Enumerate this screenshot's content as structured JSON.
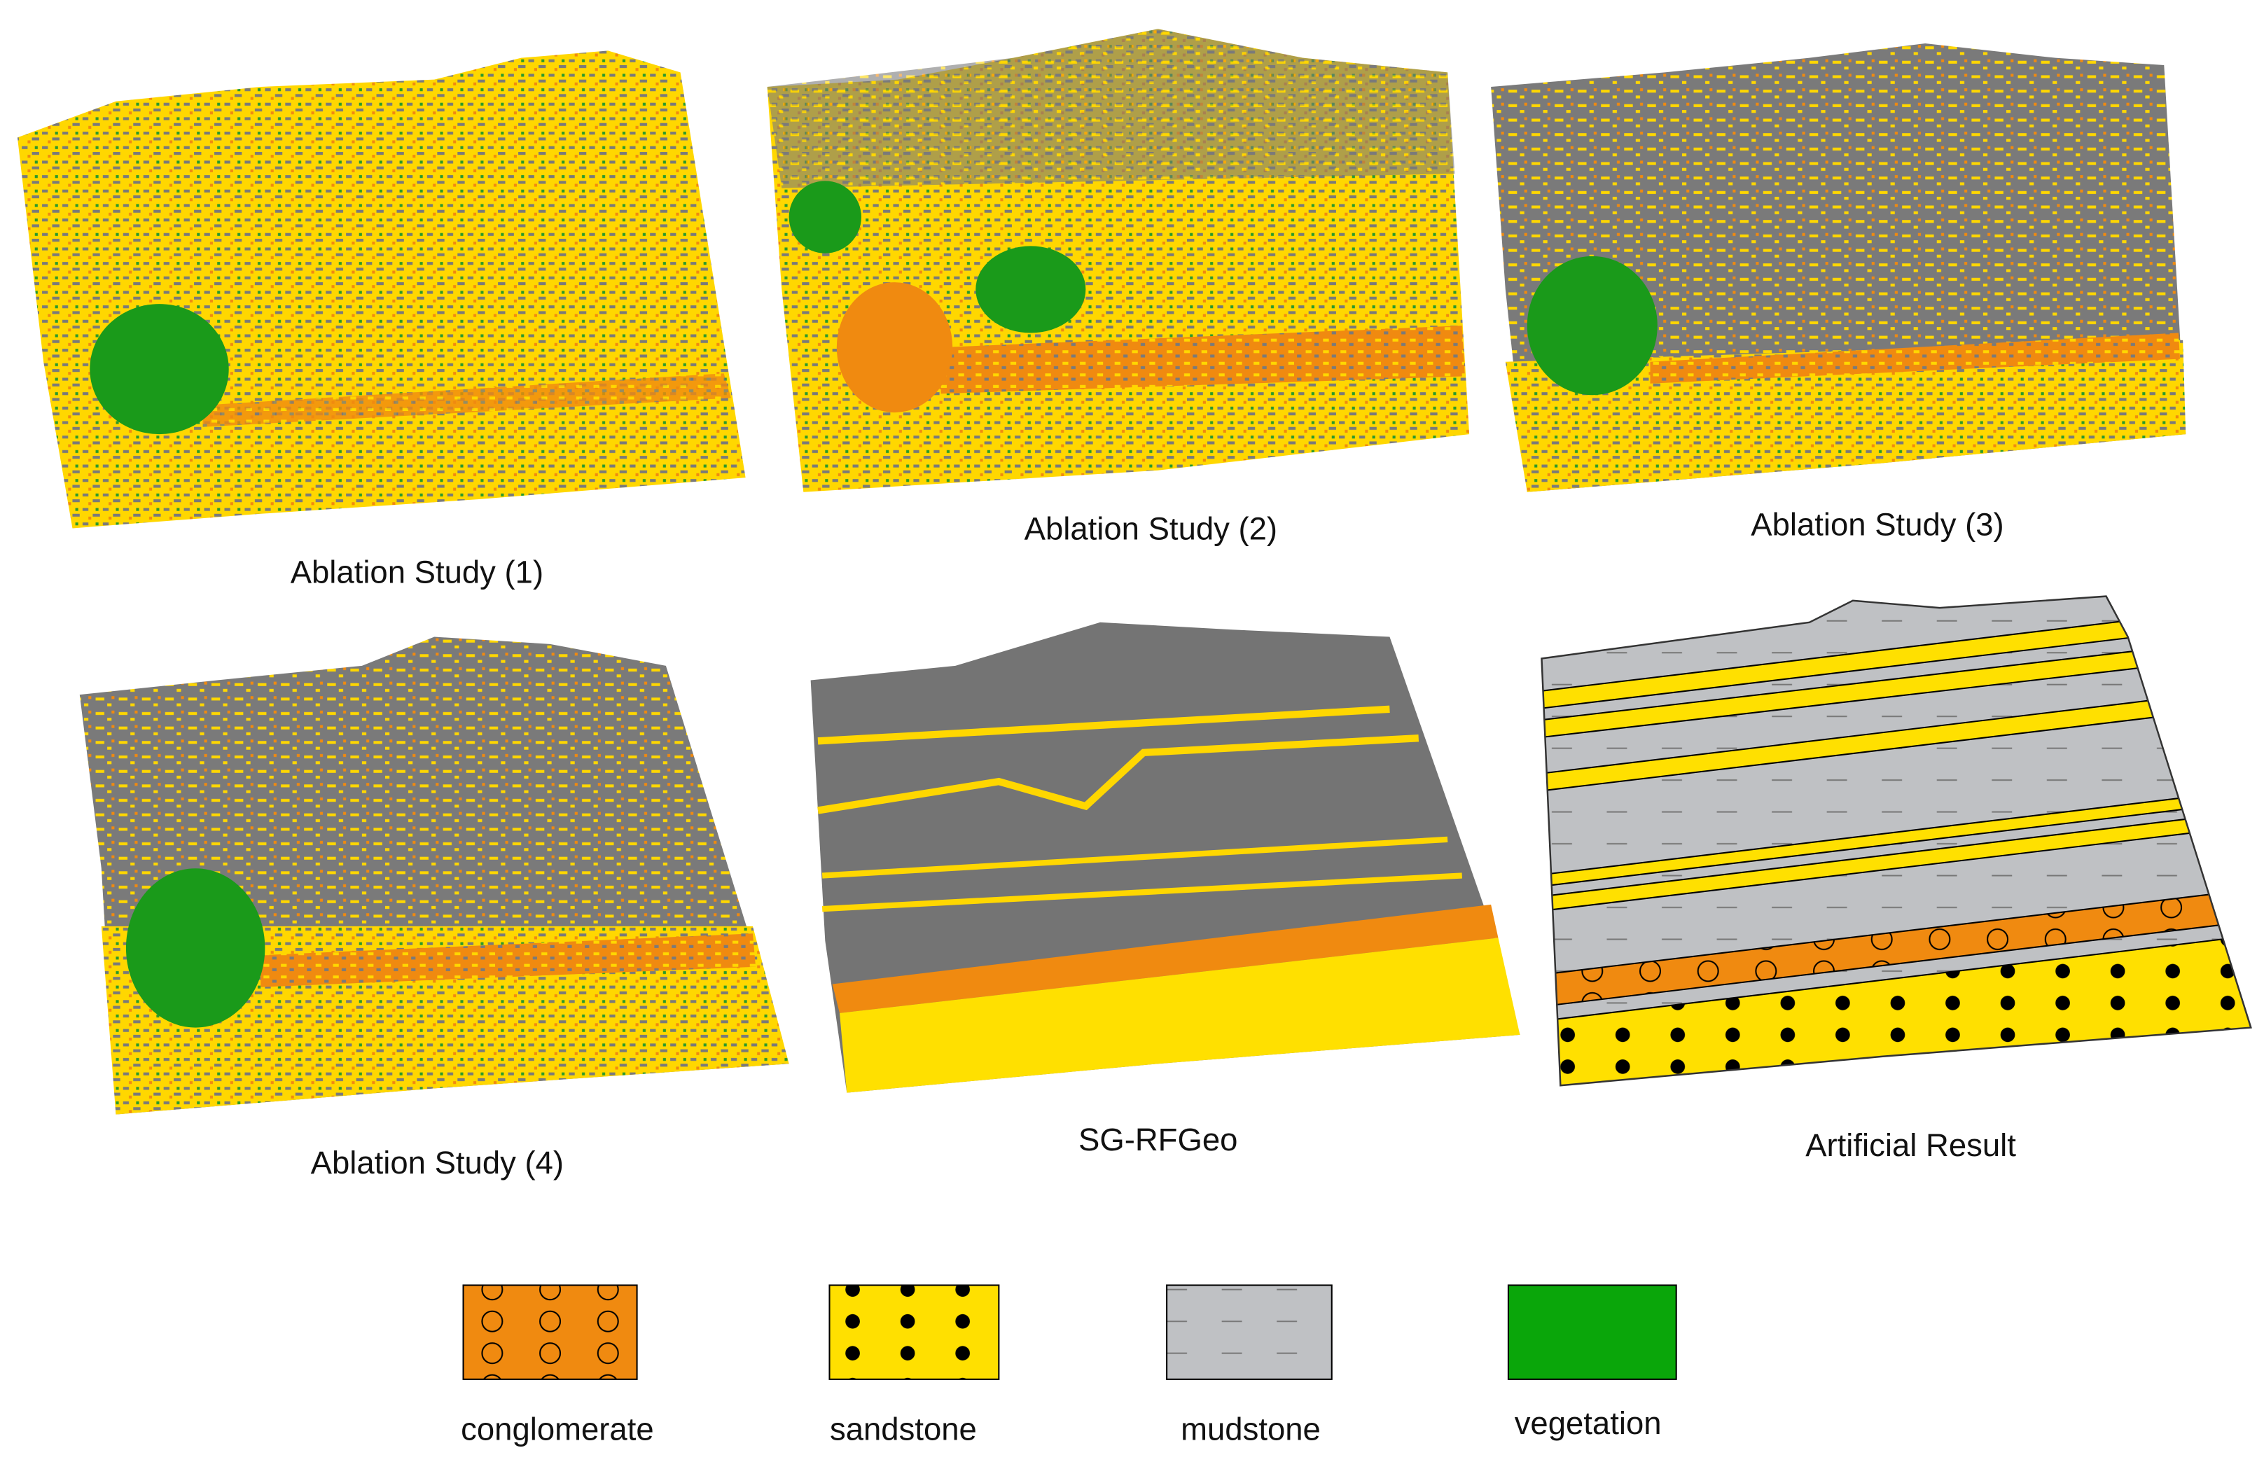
{
  "panels": [
    {
      "label": "Ablation Study (1)"
    },
    {
      "label": "Ablation Study (2)"
    },
    {
      "label": "Ablation Study (3)"
    },
    {
      "label": "Ablation Study (4)"
    },
    {
      "label": "SG-RFGeo"
    },
    {
      "label": "Artificial Result"
    }
  ],
  "legend": [
    {
      "label": "conglomerate"
    },
    {
      "label": "sandstone"
    },
    {
      "label": "mudstone"
    },
    {
      "label": "vegetation"
    }
  ]
}
